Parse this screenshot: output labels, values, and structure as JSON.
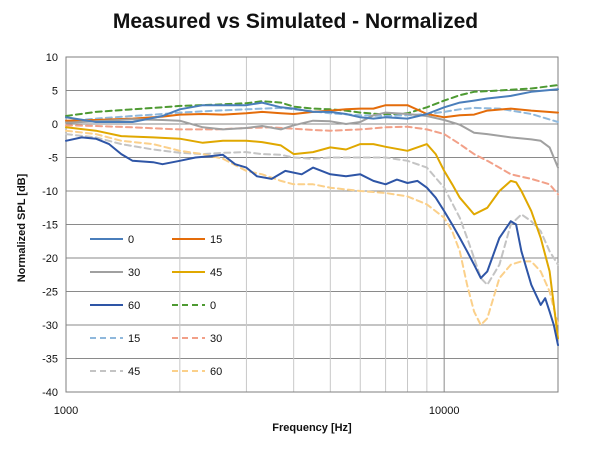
{
  "chart_data": {
    "type": "line",
    "title": "Measured vs Simulated - Normalized",
    "xlabel": "Frequency [Hz]",
    "ylabel": "Normalized SPL [dB]",
    "xscale": "log",
    "xlim": [
      1000,
      20000
    ],
    "ylim": [
      -40,
      10
    ],
    "x_tick_labels": [
      {
        "value": 1000,
        "label": "1000"
      },
      {
        "value": 10000,
        "label": "10000"
      }
    ],
    "y_ticks": [
      {
        "value": 10,
        "label": "10"
      },
      {
        "value": 5,
        "label": "5"
      },
      {
        "value": 0,
        "label": "0"
      },
      {
        "value": -5,
        "label": "-5"
      },
      {
        "value": -10,
        "label": "-10"
      },
      {
        "value": -15,
        "label": "-15"
      },
      {
        "value": -20,
        "label": "-20"
      },
      {
        "value": -25,
        "label": "-25"
      },
      {
        "value": -30,
        "label": "-30"
      },
      {
        "value": -35,
        "label": "-35"
      },
      {
        "value": -40,
        "label": "-40"
      }
    ],
    "grid": true,
    "legend_position": "inside-left",
    "series": [
      {
        "name": "0",
        "color": "#4a7ebb",
        "dash": "solid",
        "points": [
          [
            1000,
            1
          ],
          [
            1200,
            0.3
          ],
          [
            1500,
            0.3
          ],
          [
            1800,
            1.2
          ],
          [
            2000,
            2.2
          ],
          [
            2300,
            2.8
          ],
          [
            2600,
            2.8
          ],
          [
            3000,
            2.8
          ],
          [
            3300,
            3.2
          ],
          [
            3700,
            2.5
          ],
          [
            4000,
            2.3
          ],
          [
            4500,
            1.8
          ],
          [
            5000,
            1.8
          ],
          [
            5500,
            1.5
          ],
          [
            6000,
            1
          ],
          [
            6500,
            0.8
          ],
          [
            7000,
            1
          ],
          [
            8000,
            0.8
          ],
          [
            9000,
            1.5
          ],
          [
            10000,
            2.5
          ],
          [
            11000,
            3.2
          ],
          [
            12000,
            3.5
          ],
          [
            13000,
            3.8
          ],
          [
            15000,
            4.2
          ],
          [
            17000,
            4.8
          ],
          [
            20000,
            5.2
          ]
        ]
      },
      {
        "name": "15",
        "color": "#e46c0a",
        "dash": "solid",
        "points": [
          [
            1000,
            0.5
          ],
          [
            1200,
            0.6
          ],
          [
            1500,
            0.8
          ],
          [
            1800,
            1.1
          ],
          [
            2000,
            1.4
          ],
          [
            2300,
            1.5
          ],
          [
            2600,
            1.4
          ],
          [
            3000,
            1.6
          ],
          [
            3300,
            1.8
          ],
          [
            3700,
            1.6
          ],
          [
            4000,
            1.5
          ],
          [
            4500,
            1.8
          ],
          [
            5000,
            2
          ],
          [
            5500,
            2.2
          ],
          [
            6000,
            2.3
          ],
          [
            6500,
            2.3
          ],
          [
            7000,
            2.8
          ],
          [
            8000,
            2.8
          ],
          [
            9000,
            1.5
          ],
          [
            10000,
            1
          ],
          [
            11000,
            1.3
          ],
          [
            12000,
            1.4
          ],
          [
            13000,
            2
          ],
          [
            15000,
            2.3
          ],
          [
            17000,
            2
          ],
          [
            20000,
            1.7
          ]
        ]
      },
      {
        "name": "30",
        "color": "#a0a0a0",
        "dash": "solid",
        "points": [
          [
            1000,
            0.2
          ],
          [
            1200,
            0.4
          ],
          [
            1500,
            0.7
          ],
          [
            1800,
            0.6
          ],
          [
            2000,
            0.5
          ],
          [
            2300,
            -0.5
          ],
          [
            2600,
            -0.8
          ],
          [
            3000,
            -0.6
          ],
          [
            3300,
            -0.3
          ],
          [
            3700,
            -0.8
          ],
          [
            4000,
            -0.2
          ],
          [
            4500,
            0.5
          ],
          [
            5000,
            0.4
          ],
          [
            5500,
            0
          ],
          [
            6000,
            0.3
          ],
          [
            6500,
            1.3
          ],
          [
            7000,
            1.7
          ],
          [
            8000,
            1.5
          ],
          [
            9000,
            1.2
          ],
          [
            10000,
            0.6
          ],
          [
            11000,
            -0.1
          ],
          [
            12000,
            -1.3
          ],
          [
            13000,
            -1.5
          ],
          [
            15000,
            -2
          ],
          [
            17000,
            -2.3
          ],
          [
            18000,
            -2.5
          ],
          [
            19000,
            -3.5
          ],
          [
            20000,
            -6.5
          ]
        ]
      },
      {
        "name": "45",
        "color": "#e0a800",
        "dash": "solid",
        "points": [
          [
            1000,
            -0.5
          ],
          [
            1200,
            -1
          ],
          [
            1400,
            -1.8
          ],
          [
            1700,
            -2
          ],
          [
            2000,
            -2.2
          ],
          [
            2300,
            -2.8
          ],
          [
            2600,
            -2.5
          ],
          [
            3000,
            -2.5
          ],
          [
            3300,
            -2.7
          ],
          [
            3700,
            -3.2
          ],
          [
            4000,
            -4.5
          ],
          [
            4500,
            -4.2
          ],
          [
            5000,
            -3.5
          ],
          [
            5500,
            -3.8
          ],
          [
            6000,
            -3
          ],
          [
            6500,
            -3
          ],
          [
            7000,
            -3.4
          ],
          [
            8000,
            -4
          ],
          [
            9000,
            -3
          ],
          [
            9500,
            -4.5
          ],
          [
            10000,
            -7
          ],
          [
            10500,
            -9
          ],
          [
            11000,
            -11
          ],
          [
            12000,
            -13.5
          ],
          [
            13000,
            -12.5
          ],
          [
            14000,
            -10
          ],
          [
            15000,
            -8.5
          ],
          [
            15500,
            -8.7
          ],
          [
            16000,
            -10
          ],
          [
            17000,
            -13
          ],
          [
            18000,
            -17
          ],
          [
            19000,
            -22
          ],
          [
            20000,
            -32
          ]
        ]
      },
      {
        "name": "60",
        "color": "#2e55a6",
        "dash": "solid",
        "points": [
          [
            1000,
            -2.5
          ],
          [
            1100,
            -2
          ],
          [
            1200,
            -2.2
          ],
          [
            1300,
            -3
          ],
          [
            1400,
            -4.5
          ],
          [
            1500,
            -5.5
          ],
          [
            1700,
            -5.7
          ],
          [
            1800,
            -6
          ],
          [
            2000,
            -5.5
          ],
          [
            2200,
            -5
          ],
          [
            2400,
            -4.8
          ],
          [
            2600,
            -4.6
          ],
          [
            2800,
            -6
          ],
          [
            3000,
            -6.5
          ],
          [
            3200,
            -7.8
          ],
          [
            3500,
            -8.2
          ],
          [
            3800,
            -7
          ],
          [
            4200,
            -7.5
          ],
          [
            4500,
            -6.5
          ],
          [
            5000,
            -7.5
          ],
          [
            5500,
            -7.8
          ],
          [
            6000,
            -7.5
          ],
          [
            6500,
            -8.5
          ],
          [
            7000,
            -9
          ],
          [
            7500,
            -8.3
          ],
          [
            8000,
            -8.8
          ],
          [
            8500,
            -8.5
          ],
          [
            9000,
            -9.5
          ],
          [
            9500,
            -11
          ],
          [
            10000,
            -13
          ],
          [
            10500,
            -15
          ],
          [
            11000,
            -17
          ],
          [
            11500,
            -19
          ],
          [
            12000,
            -21
          ],
          [
            12500,
            -23
          ],
          [
            13000,
            -22
          ],
          [
            14000,
            -17
          ],
          [
            15000,
            -14.5
          ],
          [
            15500,
            -15
          ],
          [
            16000,
            -19
          ],
          [
            17000,
            -24
          ],
          [
            18000,
            -27
          ],
          [
            18500,
            -26
          ],
          [
            19000,
            -28
          ],
          [
            19500,
            -30
          ],
          [
            20000,
            -33
          ]
        ]
      },
      {
        "name": "0",
        "color": "#4e9a32",
        "dash": "dashed",
        "points": [
          [
            1000,
            1.2
          ],
          [
            1200,
            1.8
          ],
          [
            1500,
            2.2
          ],
          [
            1800,
            2.5
          ],
          [
            2000,
            2.7
          ],
          [
            2500,
            2.9
          ],
          [
            3000,
            3.1
          ],
          [
            3300,
            3.4
          ],
          [
            3700,
            3.2
          ],
          [
            4000,
            2.6
          ],
          [
            4500,
            2.3
          ],
          [
            5000,
            2.2
          ],
          [
            5500,
            2
          ],
          [
            6000,
            1.7
          ],
          [
            7000,
            1.4
          ],
          [
            8000,
            1.6
          ],
          [
            9000,
            2.5
          ],
          [
            10000,
            3.5
          ],
          [
            11000,
            4.3
          ],
          [
            12000,
            4.8
          ],
          [
            14000,
            5
          ],
          [
            17000,
            5.3
          ],
          [
            20000,
            5.8
          ]
        ]
      },
      {
        "name": "15",
        "color": "#8fb8dc",
        "dash": "dashed",
        "points": [
          [
            1000,
            0.4
          ],
          [
            1200,
            0.8
          ],
          [
            1500,
            1.2
          ],
          [
            1800,
            1.5
          ],
          [
            2000,
            1.7
          ],
          [
            2500,
            2
          ],
          [
            3000,
            2.2
          ],
          [
            3300,
            2.3
          ],
          [
            3700,
            2.4
          ],
          [
            4000,
            2.2
          ],
          [
            4500,
            1.9
          ],
          [
            5000,
            1.6
          ],
          [
            6000,
            1.3
          ],
          [
            7000,
            1.2
          ],
          [
            8000,
            1.3
          ],
          [
            9000,
            1.5
          ],
          [
            10000,
            1.8
          ],
          [
            11000,
            2.2
          ],
          [
            12000,
            2.4
          ],
          [
            14000,
            2.3
          ],
          [
            17000,
            1.5
          ],
          [
            20000,
            0.3
          ]
        ]
      },
      {
        "name": "30",
        "color": "#f2a088",
        "dash": "dashed",
        "points": [
          [
            1000,
            -0.2
          ],
          [
            1200,
            -0.3
          ],
          [
            1500,
            -0.5
          ],
          [
            1800,
            -0.7
          ],
          [
            2000,
            -0.8
          ],
          [
            2500,
            -0.8
          ],
          [
            3000,
            -0.6
          ],
          [
            3500,
            -0.5
          ],
          [
            4000,
            -0.7
          ],
          [
            4500,
            -0.9
          ],
          [
            5000,
            -1
          ],
          [
            6000,
            -0.8
          ],
          [
            7000,
            -0.5
          ],
          [
            8000,
            -0.4
          ],
          [
            9000,
            -0.8
          ],
          [
            10000,
            -1.5
          ],
          [
            11000,
            -3
          ],
          [
            12000,
            -4.5
          ],
          [
            13000,
            -5.5
          ],
          [
            14000,
            -6.5
          ],
          [
            15000,
            -7.5
          ],
          [
            17000,
            -8.2
          ],
          [
            19000,
            -9
          ],
          [
            20000,
            -10.5
          ]
        ]
      },
      {
        "name": "45",
        "color": "#c4c4c4",
        "dash": "dashed",
        "points": [
          [
            1000,
            -1.5
          ],
          [
            1200,
            -2
          ],
          [
            1400,
            -3
          ],
          [
            1700,
            -3.8
          ],
          [
            2000,
            -4.3
          ],
          [
            2300,
            -4.5
          ],
          [
            2600,
            -4.3
          ],
          [
            3000,
            -4.2
          ],
          [
            3300,
            -4.5
          ],
          [
            3700,
            -4.6
          ],
          [
            4000,
            -5
          ],
          [
            4500,
            -5.2
          ],
          [
            5000,
            -5
          ],
          [
            6000,
            -5
          ],
          [
            7000,
            -5
          ],
          [
            8000,
            -5.5
          ],
          [
            9000,
            -6.5
          ],
          [
            10000,
            -9.5
          ],
          [
            11000,
            -14
          ],
          [
            11500,
            -17
          ],
          [
            12000,
            -20
          ],
          [
            12500,
            -23
          ],
          [
            13000,
            -24
          ],
          [
            14000,
            -21
          ],
          [
            15000,
            -15
          ],
          [
            16000,
            -13.5
          ],
          [
            17000,
            -14.5
          ],
          [
            18000,
            -16
          ],
          [
            19000,
            -19
          ],
          [
            20000,
            -21
          ]
        ]
      },
      {
        "name": "60",
        "color": "#fbd08a",
        "dash": "dashed",
        "points": [
          [
            1000,
            -1
          ],
          [
            1200,
            -1.5
          ],
          [
            1400,
            -2.5
          ],
          [
            1700,
            -3
          ],
          [
            2000,
            -4
          ],
          [
            2300,
            -4.5
          ],
          [
            2600,
            -5.2
          ],
          [
            3000,
            -7
          ],
          [
            3300,
            -7.5
          ],
          [
            3700,
            -8.5
          ],
          [
            4000,
            -9
          ],
          [
            4500,
            -9
          ],
          [
            5000,
            -9.5
          ],
          [
            6000,
            -10
          ],
          [
            7000,
            -10.3
          ],
          [
            8000,
            -10.8
          ],
          [
            9000,
            -12
          ],
          [
            10000,
            -14
          ],
          [
            10500,
            -16
          ],
          [
            11000,
            -19
          ],
          [
            11500,
            -24
          ],
          [
            12000,
            -28
          ],
          [
            12500,
            -30
          ],
          [
            13000,
            -29
          ],
          [
            14000,
            -23
          ],
          [
            15000,
            -21
          ],
          [
            16000,
            -20.5
          ],
          [
            17000,
            -20.5
          ],
          [
            18000,
            -22
          ],
          [
            19000,
            -25
          ],
          [
            20000,
            -30
          ]
        ]
      }
    ]
  }
}
